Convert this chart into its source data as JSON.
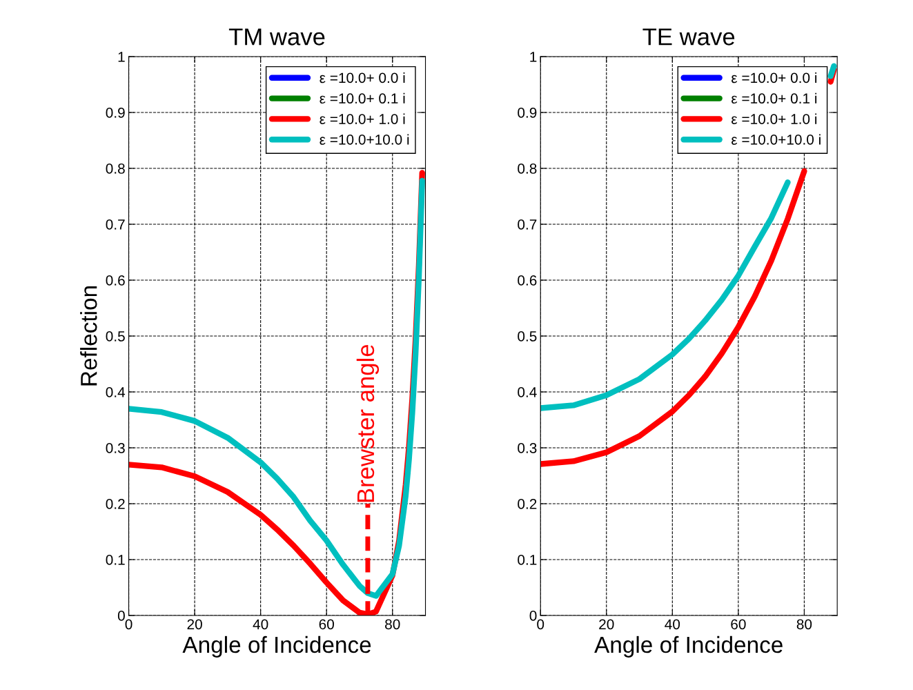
{
  "chart_data": [
    {
      "type": "line",
      "title": "TM wave",
      "xlabel": "Angle of Incidence",
      "ylabel": "Reflection",
      "x": [
        0,
        10,
        20,
        30,
        40,
        45,
        50,
        55,
        60,
        65,
        70,
        72.5,
        75,
        80,
        82,
        84,
        85,
        86,
        87,
        88,
        89
      ],
      "series": [
        {
          "name": "ε =10.0+ 0.0 i",
          "color": "#0000ff",
          "values": [
            null,
            null,
            null,
            null,
            null,
            null,
            null,
            null,
            null,
            null,
            null,
            null,
            null,
            null,
            null,
            null,
            null,
            null,
            null,
            null,
            null
          ]
        },
        {
          "name": "ε =10.0+ 0.1 i",
          "color": "#008000",
          "values": [
            null,
            null,
            null,
            null,
            null,
            null,
            null,
            null,
            null,
            null,
            null,
            null,
            null,
            null,
            null,
            null,
            null,
            null,
            null,
            null,
            null
          ]
        },
        {
          "name": "ε =10.0+ 1.0 i",
          "color": "#ff0000",
          "values": [
            0.27,
            0.265,
            0.249,
            0.221,
            0.18,
            0.154,
            0.125,
            0.093,
            0.059,
            0.027,
            0.005,
            0.002,
            0.007,
            0.072,
            0.134,
            0.234,
            0.302,
            0.388,
            0.494,
            0.627,
            0.792
          ]
        },
        {
          "name": "ε =10.0+10.0 i",
          "color": "#00bfbf",
          "values": [
            0.37,
            0.364,
            0.348,
            0.318,
            0.274,
            0.245,
            0.212,
            0.17,
            0.134,
            0.091,
            0.053,
            0.04,
            0.035,
            0.074,
            0.125,
            0.214,
            0.279,
            0.362,
            0.468,
            0.604,
            0.778
          ]
        }
      ],
      "ref_lines": [
        {
          "axis": "x",
          "value": 72.5,
          "label": "Brewster angle",
          "color": "#ff0000",
          "line_style": "dashed"
        }
      ],
      "xlim": [
        0,
        90
      ],
      "xticks": [
        0,
        20,
        40,
        60,
        80
      ],
      "ylim": [
        0,
        1
      ],
      "yticks": [
        0,
        0.1,
        0.2,
        0.3,
        0.4,
        0.5,
        0.6,
        0.7,
        0.8,
        0.9,
        1
      ],
      "grid": true,
      "legend": "top right",
      "line_style": "solid",
      "marker": "none"
    },
    {
      "type": "line",
      "title": "TE wave",
      "xlabel": "Angle of Incidence",
      "x": [
        0,
        10,
        20,
        30,
        40,
        45,
        50,
        55,
        60,
        65,
        70,
        75,
        80,
        85,
        88,
        89
      ],
      "series": [
        {
          "name": "ε =10.0+ 0.0 i",
          "color": "#0000ff",
          "values": [
            null,
            null,
            null,
            null,
            null,
            null,
            null,
            null,
            null,
            null,
            null,
            null,
            null,
            null,
            null,
            null
          ]
        },
        {
          "name": "ε =10.0+ 0.1 i",
          "color": "#008000",
          "values": [
            null,
            null,
            null,
            null,
            null,
            null,
            null,
            null,
            null,
            null,
            null,
            null,
            null,
            null,
            null,
            null
          ]
        },
        {
          "name": "ε =10.0+ 1.0 i",
          "color": "#ff0000",
          "values": [
            0.271,
            0.276,
            0.292,
            0.321,
            0.365,
            0.394,
            0.428,
            0.469,
            0.516,
            0.571,
            0.635,
            0.71,
            0.795,
            null,
            0.955,
            0.977
          ]
        },
        {
          "name": "ε =10.0+10.0 i",
          "color": "#00bfbf",
          "values": [
            0.371,
            0.376,
            0.394,
            0.423,
            0.467,
            0.495,
            0.528,
            0.565,
            0.608,
            0.66,
            0.711,
            0.775,
            null,
            null,
            0.965,
            0.983
          ]
        }
      ],
      "xlim": [
        0,
        90
      ],
      "xticks": [
        0,
        20,
        40,
        60,
        80
      ],
      "ylim": [
        0,
        1
      ],
      "yticks": [
        0,
        0.1,
        0.2,
        0.3,
        0.4,
        0.5,
        0.6,
        0.7,
        0.8,
        0.9,
        1
      ],
      "grid": true,
      "legend": "top right",
      "line_style": "solid",
      "marker": "none"
    }
  ]
}
